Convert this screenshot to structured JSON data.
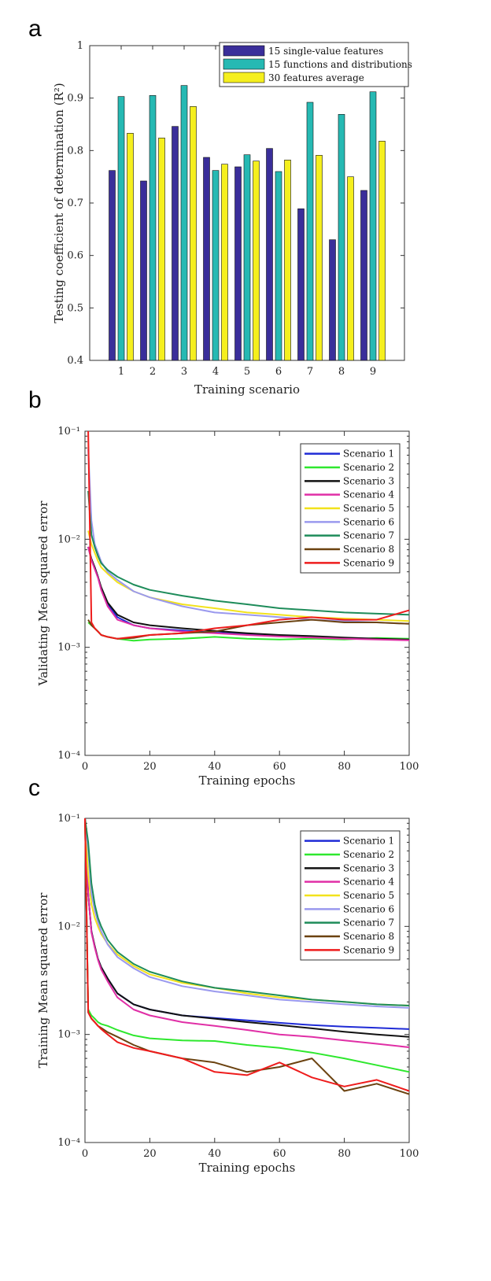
{
  "panels": {
    "a": "a",
    "b": "b",
    "c": "c"
  },
  "chart_data": [
    {
      "type": "bar",
      "categories": [
        "1",
        "2",
        "3",
        "4",
        "5",
        "6",
        "7",
        "8",
        "9"
      ],
      "ylabel": "Testing coefficient of determination (R²)",
      "xlabel": "Training scenario",
      "ylim": [
        0.4,
        1
      ],
      "yticks": [
        "0.4",
        "0.5",
        "0.6",
        "0.7",
        "0.8",
        "0.9",
        "1"
      ],
      "legend_position": "top-right",
      "series": [
        {
          "name": "15 single-value features",
          "color": "#3a2e9a",
          "values": [
            0.762,
            0.742,
            0.846,
            0.787,
            0.769,
            0.804,
            0.689,
            0.63,
            0.724
          ]
        },
        {
          "name": "15 functions and distributions",
          "color": "#26b9b3",
          "values": [
            0.903,
            0.905,
            0.924,
            0.762,
            0.792,
            0.76,
            0.892,
            0.869,
            0.912
          ]
        },
        {
          "name": "30 features average",
          "color": "#f5ef1e",
          "values": [
            0.833,
            0.824,
            0.884,
            0.774,
            0.78,
            0.782,
            0.791,
            0.75,
            0.818
          ]
        }
      ]
    },
    {
      "type": "line",
      "xlabel": "Training epochs",
      "ylabel": "Validating Mean squared error",
      "xlim": [
        0,
        100
      ],
      "ylim": [
        0.0001,
        0.1
      ],
      "yscale": "log",
      "xticks": [
        "0",
        "20",
        "40",
        "60",
        "80",
        "100"
      ],
      "yticks": [
        "10⁻⁴",
        "10⁻³",
        "10⁻²",
        "10⁻¹"
      ],
      "legend_position": "top-right",
      "x": [
        1,
        2,
        3,
        4,
        5,
        7,
        10,
        15,
        20,
        30,
        40,
        50,
        60,
        70,
        80,
        90,
        100
      ],
      "series": [
        {
          "name": "Scenario 1",
          "color": "#1f2bd6",
          "values": [
            0.0085,
            0.0065,
            0.0055,
            0.0045,
            0.0035,
            0.0025,
            0.0019,
            0.0016,
            0.0015,
            0.00143,
            0.00137,
            0.00132,
            0.00128,
            0.00125,
            0.00122,
            0.0012,
            0.00118
          ]
        },
        {
          "name": "Scenario 2",
          "color": "#2ee82e",
          "values": [
            0.0017,
            0.0016,
            0.0015,
            0.0014,
            0.0013,
            0.00125,
            0.0012,
            0.00115,
            0.00118,
            0.0012,
            0.00125,
            0.0012,
            0.00118,
            0.0012,
            0.00118,
            0.00122,
            0.0012
          ]
        },
        {
          "name": "Scenario 3",
          "color": "#111111",
          "values": [
            0.0085,
            0.0066,
            0.0055,
            0.0045,
            0.0036,
            0.0026,
            0.002,
            0.0017,
            0.0016,
            0.0015,
            0.00142,
            0.00135,
            0.0013,
            0.00127,
            0.00123,
            0.0012,
            0.00118
          ]
        },
        {
          "name": "Scenario 4",
          "color": "#e02fa6",
          "values": [
            0.0085,
            0.0064,
            0.0053,
            0.0044,
            0.0034,
            0.0024,
            0.0018,
            0.0016,
            0.0015,
            0.0014,
            0.00135,
            0.0013,
            0.00126,
            0.00123,
            0.0012,
            0.00118,
            0.00116
          ]
        },
        {
          "name": "Scenario 5",
          "color": "#f2e21c",
          "values": [
            0.012,
            0.009,
            0.0075,
            0.0063,
            0.0055,
            0.0048,
            0.004,
            0.0033,
            0.0029,
            0.0025,
            0.0023,
            0.0021,
            0.002,
            0.0019,
            0.00185,
            0.0018,
            0.00175
          ]
        },
        {
          "name": "Scenario 6",
          "color": "#9a99ee",
          "values": [
            0.068,
            0.015,
            0.009,
            0.0075,
            0.0062,
            0.005,
            0.0042,
            0.0033,
            0.0029,
            0.0024,
            0.0021,
            0.002,
            0.0019,
            0.0018,
            0.00175,
            0.0017,
            0.00165
          ]
        },
        {
          "name": "Scenario 7",
          "color": "#1e8c5a",
          "values": [
            0.028,
            0.011,
            0.0085,
            0.007,
            0.006,
            0.0052,
            0.0045,
            0.0038,
            0.0034,
            0.003,
            0.0027,
            0.0025,
            0.0023,
            0.0022,
            0.0021,
            0.00205,
            0.002
          ]
        },
        {
          "name": "Scenario 8",
          "color": "#6b4210",
          "values": [
            0.0018,
            0.0016,
            0.0015,
            0.0014,
            0.0013,
            0.00125,
            0.0012,
            0.00122,
            0.0013,
            0.00135,
            0.0014,
            0.0016,
            0.0017,
            0.0018,
            0.0017,
            0.0017,
            0.00165
          ]
        },
        {
          "name": "Scenario 9",
          "color": "#ee1c1c",
          "values": [
            0.1,
            0.0017,
            0.0015,
            0.0014,
            0.0013,
            0.00125,
            0.0012,
            0.00125,
            0.0013,
            0.00135,
            0.0015,
            0.0016,
            0.0018,
            0.0019,
            0.0018,
            0.0018,
            0.0022
          ]
        }
      ]
    },
    {
      "type": "line",
      "xlabel": "Training epochs",
      "ylabel": "Training Mean squared error",
      "xlim": [
        0,
        100
      ],
      "ylim": [
        0.0001,
        0.1
      ],
      "yscale": "log",
      "xticks": [
        "0",
        "20",
        "40",
        "60",
        "80",
        "100"
      ],
      "yticks": [
        "10⁻⁴",
        "10⁻³",
        "10⁻²",
        "10⁻¹"
      ],
      "legend_position": "top-right",
      "x": [
        0,
        1,
        2,
        3,
        4,
        5,
        7,
        10,
        15,
        20,
        30,
        40,
        50,
        60,
        70,
        80,
        90,
        100
      ],
      "series": [
        {
          "name": "Scenario 1",
          "color": "#1f2bd6",
          "values": [
            0.1,
            0.02,
            0.009,
            0.0065,
            0.005,
            0.0042,
            0.0033,
            0.0024,
            0.0019,
            0.0017,
            0.0015,
            0.00142,
            0.00135,
            0.00128,
            0.00122,
            0.00118,
            0.00115,
            0.00112
          ]
        },
        {
          "name": "Scenario 2",
          "color": "#2ee82e",
          "values": [
            0.1,
            0.0017,
            0.0015,
            0.0014,
            0.0013,
            0.00125,
            0.0012,
            0.0011,
            0.00098,
            0.00092,
            0.00088,
            0.00087,
            0.0008,
            0.00075,
            0.00068,
            0.0006,
            0.00052,
            0.00045
          ]
        },
        {
          "name": "Scenario 3",
          "color": "#111111",
          "values": [
            0.1,
            0.02,
            0.009,
            0.0066,
            0.005,
            0.0042,
            0.0033,
            0.0024,
            0.0019,
            0.0017,
            0.0015,
            0.0014,
            0.0013,
            0.00122,
            0.00114,
            0.00106,
            0.001,
            0.00095
          ]
        },
        {
          "name": "Scenario 4",
          "color": "#e02fa6",
          "values": [
            0.1,
            0.02,
            0.0088,
            0.0064,
            0.0049,
            0.004,
            0.0031,
            0.0022,
            0.0017,
            0.0015,
            0.0013,
            0.0012,
            0.0011,
            0.001,
            0.00095,
            0.00088,
            0.00082,
            0.00076
          ]
        },
        {
          "name": "Scenario 5",
          "color": "#f2e21c",
          "values": [
            0.1,
            0.03,
            0.016,
            0.012,
            0.01,
            0.0085,
            0.0069,
            0.0055,
            0.0043,
            0.0036,
            0.003,
            0.0027,
            0.0024,
            0.0022,
            0.0021,
            0.002,
            0.0019,
            0.00185
          ]
        },
        {
          "name": "Scenario 6",
          "color": "#9a99ee",
          "values": [
            0.1,
            0.05,
            0.02,
            0.014,
            0.011,
            0.009,
            0.0068,
            0.0052,
            0.0041,
            0.0034,
            0.0028,
            0.0025,
            0.0023,
            0.0021,
            0.002,
            0.0019,
            0.00182,
            0.00176
          ]
        },
        {
          "name": "Scenario 7",
          "color": "#1e8c5a",
          "values": [
            0.1,
            0.06,
            0.025,
            0.016,
            0.012,
            0.01,
            0.0075,
            0.0058,
            0.0045,
            0.0038,
            0.0031,
            0.0027,
            0.0025,
            0.0023,
            0.0021,
            0.002,
            0.0019,
            0.00185
          ]
        },
        {
          "name": "Scenario 8",
          "color": "#6b4210",
          "values": [
            0.1,
            0.0016,
            0.0014,
            0.0013,
            0.0012,
            0.00115,
            0.00105,
            0.00095,
            0.0008,
            0.0007,
            0.0006,
            0.00055,
            0.00045,
            0.0005,
            0.0006,
            0.0003,
            0.00035,
            0.00028
          ]
        },
        {
          "name": "Scenario 9",
          "color": "#ee1c1c",
          "values": [
            0.1,
            0.0016,
            0.0014,
            0.0013,
            0.0012,
            0.00112,
            0.001,
            0.00085,
            0.00075,
            0.0007,
            0.0006,
            0.00045,
            0.00042,
            0.00055,
            0.0004,
            0.00033,
            0.00038,
            0.0003
          ]
        }
      ]
    }
  ]
}
